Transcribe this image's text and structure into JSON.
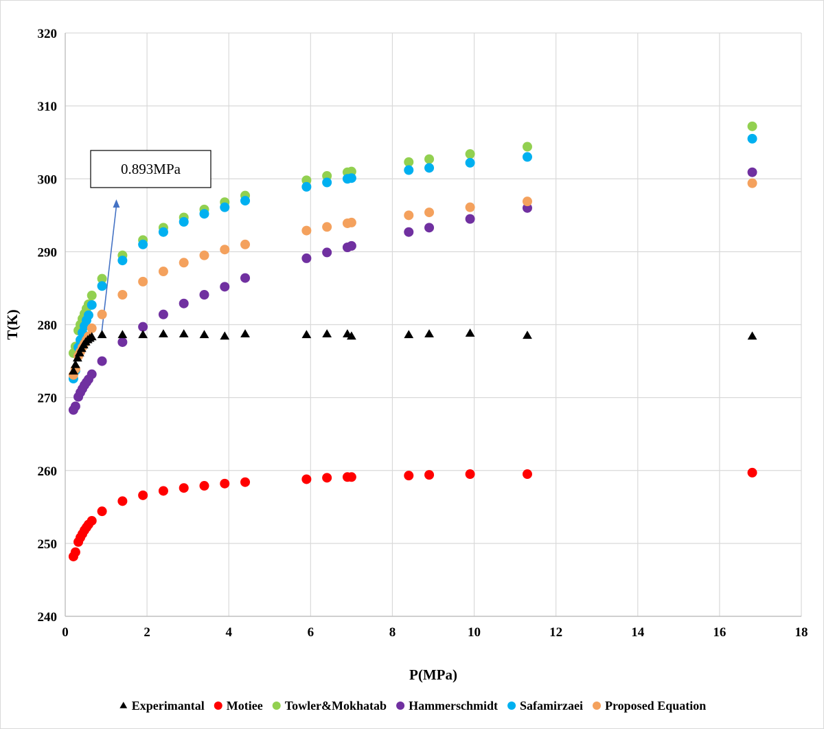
{
  "chart_data": {
    "type": "scatter",
    "title": "",
    "xlabel": "P(MPa)",
    "ylabel": "T(K)",
    "xlim": [
      0,
      18
    ],
    "ylim": [
      240,
      320
    ],
    "x_ticks": [
      0,
      2,
      4,
      6,
      8,
      10,
      12,
      14,
      16,
      18
    ],
    "y_ticks": [
      240,
      250,
      260,
      270,
      280,
      290,
      300,
      310,
      320
    ],
    "grid": true,
    "legend_position": "bottom",
    "annotation": {
      "text": "0.893MPa",
      "arrow_from": [
        0.893,
        279
      ],
      "arrow_to": [
        1.25,
        297
      ]
    },
    "series": [
      {
        "name": "Experimantal",
        "marker": "triangle",
        "color": "#000000",
        "points": [
          [
            0.2,
            273.6
          ],
          [
            0.25,
            274.5
          ],
          [
            0.3,
            275.4
          ],
          [
            0.35,
            276.1
          ],
          [
            0.4,
            276.7
          ],
          [
            0.45,
            277.2
          ],
          [
            0.5,
            277.6
          ],
          [
            0.55,
            277.9
          ],
          [
            0.6,
            278.1
          ],
          [
            0.65,
            278.3
          ],
          [
            0.9,
            278.6
          ],
          [
            1.4,
            278.6
          ],
          [
            1.9,
            278.6
          ],
          [
            2.4,
            278.7
          ],
          [
            2.9,
            278.7
          ],
          [
            3.4,
            278.6
          ],
          [
            3.9,
            278.4
          ],
          [
            4.4,
            278.7
          ],
          [
            5.9,
            278.6
          ],
          [
            6.4,
            278.7
          ],
          [
            6.9,
            278.7
          ],
          [
            7.0,
            278.4
          ],
          [
            8.4,
            278.6
          ],
          [
            8.9,
            278.7
          ],
          [
            9.9,
            278.8
          ],
          [
            11.3,
            278.5
          ],
          [
            16.8,
            278.4
          ]
        ]
      },
      {
        "name": "Motiee",
        "marker": "circle",
        "color": "#ff0000",
        "points": [
          [
            0.2,
            248.2
          ],
          [
            0.25,
            248.8
          ],
          [
            0.32,
            250.2
          ],
          [
            0.37,
            250.8
          ],
          [
            0.42,
            251.3
          ],
          [
            0.47,
            251.8
          ],
          [
            0.52,
            252.2
          ],
          [
            0.57,
            252.6
          ],
          [
            0.65,
            253.1
          ],
          [
            0.9,
            254.4
          ],
          [
            1.4,
            255.8
          ],
          [
            1.9,
            256.6
          ],
          [
            2.4,
            257.2
          ],
          [
            2.9,
            257.6
          ],
          [
            3.4,
            257.9
          ],
          [
            3.9,
            258.2
          ],
          [
            4.4,
            258.4
          ],
          [
            5.9,
            258.8
          ],
          [
            6.4,
            259.0
          ],
          [
            6.9,
            259.1
          ],
          [
            7.0,
            259.1
          ],
          [
            8.4,
            259.3
          ],
          [
            8.9,
            259.4
          ],
          [
            9.9,
            259.5
          ],
          [
            11.3,
            259.5
          ],
          [
            16.8,
            259.7
          ]
        ]
      },
      {
        "name": "Towler&Mokhatab",
        "marker": "circle",
        "color": "#92d050",
        "points": [
          [
            0.2,
            276.1
          ],
          [
            0.25,
            277.0
          ],
          [
            0.32,
            279.2
          ],
          [
            0.37,
            280.0
          ],
          [
            0.42,
            280.8
          ],
          [
            0.47,
            281.5
          ],
          [
            0.52,
            282.2
          ],
          [
            0.57,
            282.8
          ],
          [
            0.65,
            284.0
          ],
          [
            0.9,
            286.3
          ],
          [
            1.4,
            289.5
          ],
          [
            1.9,
            291.6
          ],
          [
            2.4,
            293.3
          ],
          [
            2.9,
            294.7
          ],
          [
            3.4,
            295.8
          ],
          [
            3.9,
            296.8
          ],
          [
            4.4,
            297.7
          ],
          [
            5.9,
            299.8
          ],
          [
            6.4,
            300.4
          ],
          [
            6.9,
            300.9
          ],
          [
            7.0,
            301.0
          ],
          [
            8.4,
            302.3
          ],
          [
            8.9,
            302.7
          ],
          [
            9.9,
            303.4
          ],
          [
            11.3,
            304.4
          ],
          [
            16.8,
            307.2
          ]
        ]
      },
      {
        "name": "Hammerschmidt",
        "marker": "circle",
        "color": "#7030a0",
        "points": [
          [
            0.2,
            268.3
          ],
          [
            0.25,
            268.8
          ],
          [
            0.32,
            270.1
          ],
          [
            0.37,
            270.7
          ],
          [
            0.42,
            271.2
          ],
          [
            0.47,
            271.7
          ],
          [
            0.52,
            272.1
          ],
          [
            0.57,
            272.5
          ],
          [
            0.65,
            273.2
          ],
          [
            0.9,
            275.0
          ],
          [
            1.4,
            277.6
          ],
          [
            1.9,
            279.7
          ],
          [
            2.4,
            281.4
          ],
          [
            2.9,
            282.9
          ],
          [
            3.4,
            284.1
          ],
          [
            3.9,
            285.2
          ],
          [
            4.4,
            286.4
          ],
          [
            5.9,
            289.1
          ],
          [
            6.4,
            289.9
          ],
          [
            6.9,
            290.6
          ],
          [
            7.0,
            290.8
          ],
          [
            8.4,
            292.7
          ],
          [
            8.9,
            293.3
          ],
          [
            9.9,
            294.5
          ],
          [
            11.3,
            296.0
          ],
          [
            16.8,
            300.9
          ]
        ]
      },
      {
        "name": "Safamirzaei",
        "marker": "circle",
        "color": "#00b0f0",
        "points": [
          [
            0.2,
            272.6
          ],
          [
            0.25,
            273.7
          ],
          [
            0.32,
            276.9
          ],
          [
            0.37,
            277.9
          ],
          [
            0.42,
            278.9
          ],
          [
            0.47,
            279.8
          ],
          [
            0.52,
            280.6
          ],
          [
            0.57,
            281.3
          ],
          [
            0.65,
            282.7
          ],
          [
            0.9,
            285.3
          ],
          [
            1.4,
            288.8
          ],
          [
            1.9,
            291.0
          ],
          [
            2.4,
            292.7
          ],
          [
            2.9,
            294.1
          ],
          [
            3.4,
            295.2
          ],
          [
            3.9,
            296.1
          ],
          [
            4.4,
            297.0
          ],
          [
            5.9,
            298.9
          ],
          [
            6.4,
            299.5
          ],
          [
            6.9,
            300.0
          ],
          [
            7.0,
            300.1
          ],
          [
            8.4,
            301.2
          ],
          [
            8.9,
            301.5
          ],
          [
            9.9,
            302.2
          ],
          [
            11.3,
            303.0
          ],
          [
            16.8,
            305.5
          ]
        ]
      },
      {
        "name": "Proposed Equation",
        "marker": "circle",
        "color": "#f4a15d",
        "points": [
          [
            0.2,
            273.1
          ],
          [
            0.25,
            273.9
          ],
          [
            0.32,
            275.7
          ],
          [
            0.37,
            276.3
          ],
          [
            0.42,
            276.9
          ],
          [
            0.47,
            277.4
          ],
          [
            0.52,
            277.9
          ],
          [
            0.57,
            278.4
          ],
          [
            0.65,
            279.5
          ],
          [
            0.9,
            281.4
          ],
          [
            1.4,
            284.1
          ],
          [
            1.9,
            285.9
          ],
          [
            2.4,
            287.3
          ],
          [
            2.9,
            288.5
          ],
          [
            3.4,
            289.5
          ],
          [
            3.9,
            290.3
          ],
          [
            4.4,
            291.0
          ],
          [
            5.9,
            292.9
          ],
          [
            6.4,
            293.4
          ],
          [
            6.9,
            293.9
          ],
          [
            7.0,
            294.0
          ],
          [
            8.4,
            295.0
          ],
          [
            8.9,
            295.4
          ],
          [
            9.9,
            296.1
          ],
          [
            11.3,
            296.9
          ],
          [
            16.8,
            299.4
          ]
        ]
      }
    ]
  }
}
